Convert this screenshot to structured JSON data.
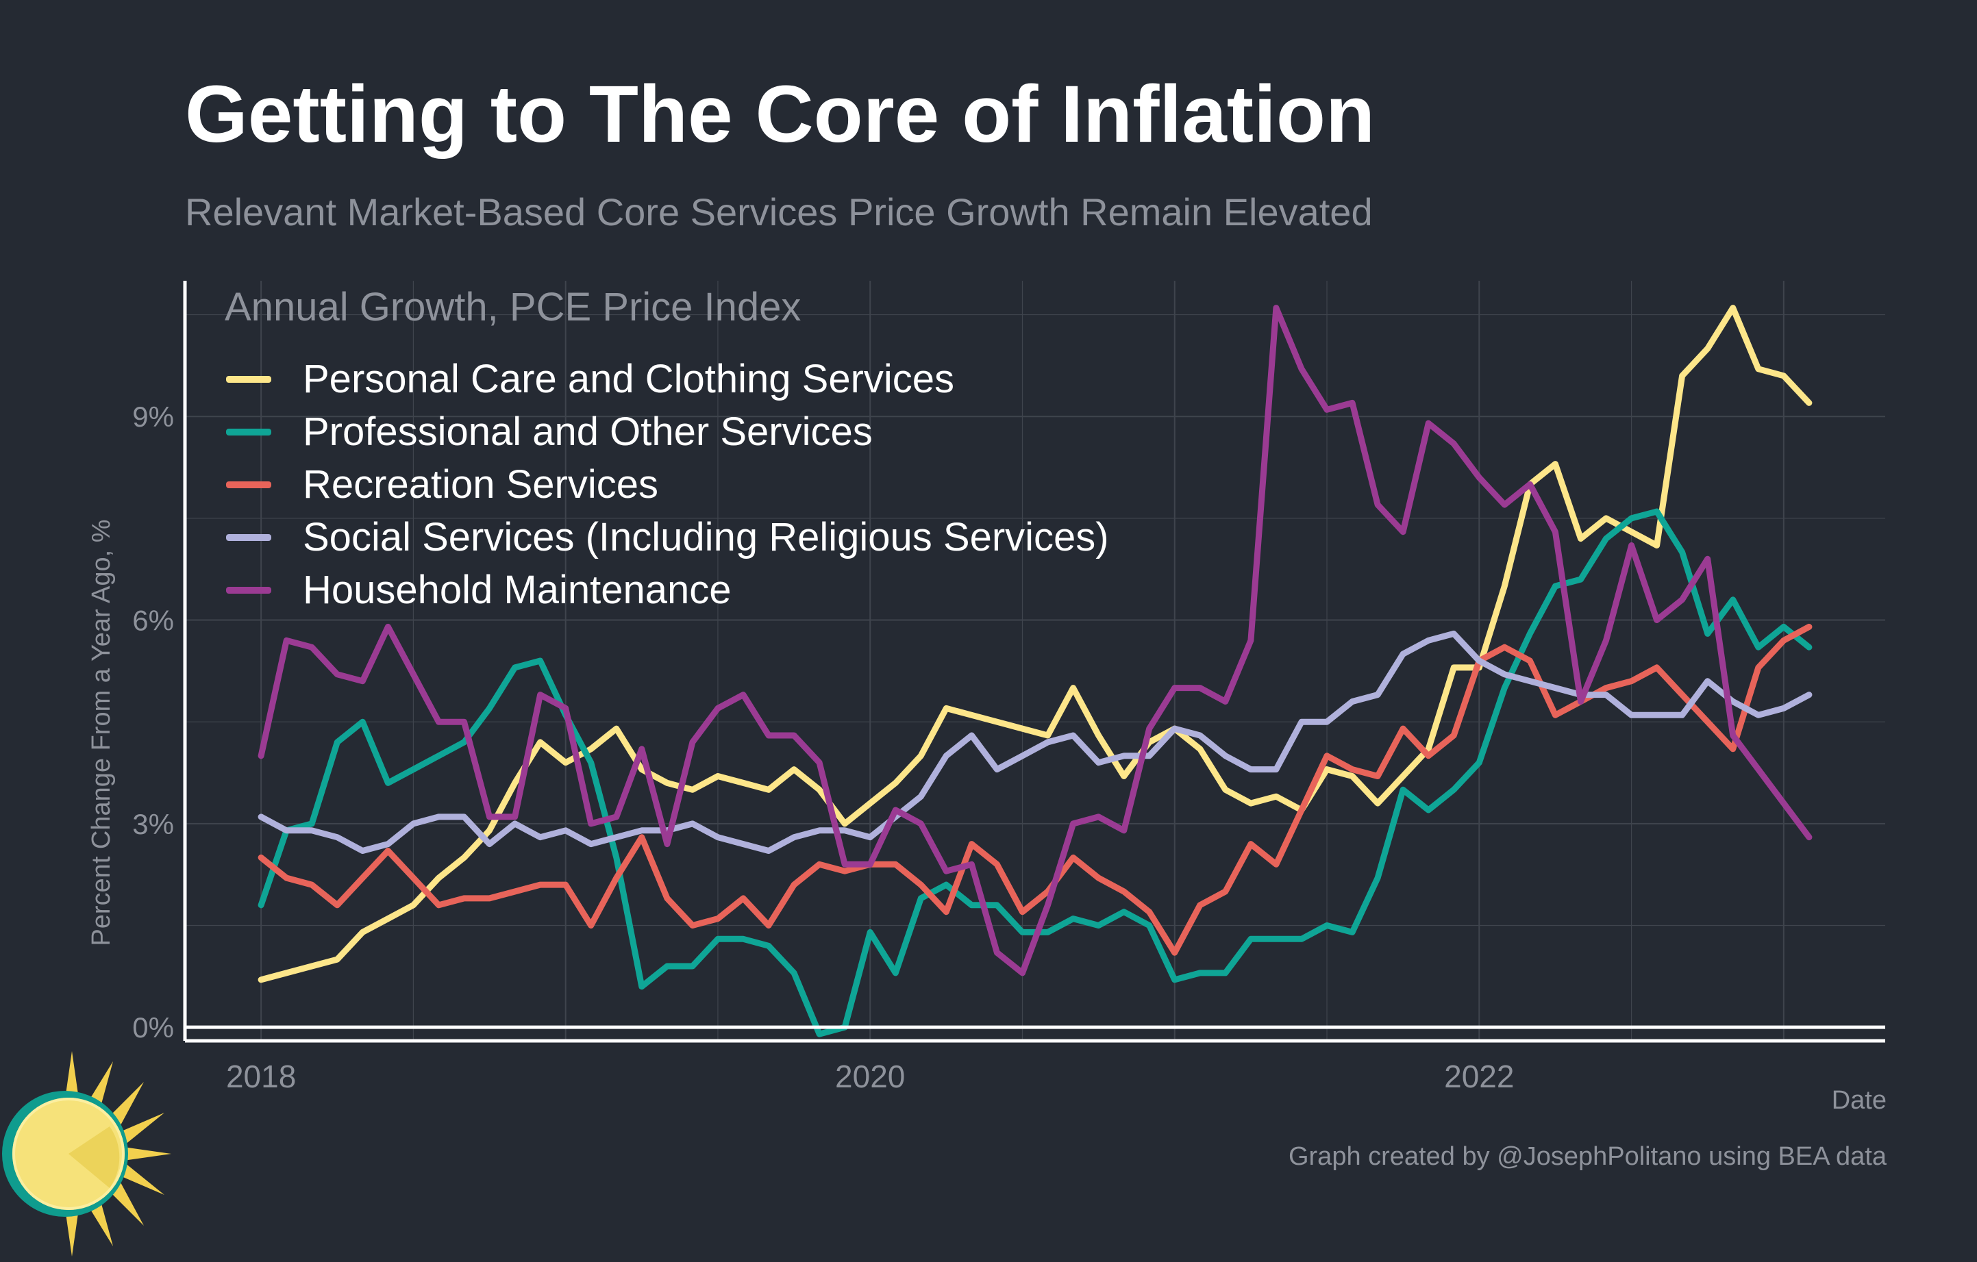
{
  "title": "Getting to The Core of Inflation",
  "subtitle": "Relevant Market-Based Core Services Price Growth Remain Elevated",
  "ylabel": "Percent Change From a Year Ago, %",
  "xaxis_title": "Date",
  "caption": "Graph created by @JosephPolitano using BEA data",
  "legend_title": "Annual Growth, PCE Price Index",
  "logo_icon": "sun-logo-icon",
  "colors": {
    "background": "#252a33",
    "grid": "#3f444d",
    "axis": "#ffffff",
    "muted_text": "#8e929b"
  },
  "chart_data": {
    "type": "line",
    "x_start": "2018-01",
    "x_frequency": "monthly",
    "xlim": [
      "2017-10",
      "2023-05"
    ],
    "ylim": [
      -0.2,
      11.0
    ],
    "y_ticks": [
      0,
      3,
      6,
      9
    ],
    "y_tick_labels": [
      "0%",
      "3%",
      "6%",
      "9%"
    ],
    "x_ticks": [
      "2018-01",
      "2020-01",
      "2022-01"
    ],
    "x_tick_labels": [
      "2018",
      "2020",
      "2022"
    ],
    "grid": true,
    "legend_position": "top-left",
    "series": [
      {
        "name": "Personal Care and Clothing Services",
        "color": "#fde68a",
        "values": [
          0.7,
          0.8,
          0.9,
          1.0,
          1.4,
          1.6,
          1.8,
          2.2,
          2.5,
          2.9,
          3.6,
          4.2,
          3.9,
          4.1,
          4.4,
          3.8,
          3.6,
          3.5,
          3.7,
          3.6,
          3.5,
          3.8,
          3.5,
          3.0,
          3.3,
          3.6,
          4.0,
          4.7,
          4.6,
          4.5,
          4.4,
          4.3,
          5.0,
          4.3,
          3.7,
          4.2,
          4.4,
          4.1,
          3.5,
          3.3,
          3.4,
          3.2,
          3.8,
          3.7,
          3.3,
          3.7,
          4.1,
          5.3,
          5.3,
          6.5,
          8.0,
          8.3,
          7.2,
          7.5,
          7.3,
          7.1,
          9.6,
          10.0,
          10.6,
          9.7,
          9.6,
          9.2
        ]
      },
      {
        "name": "Professional and Other Services",
        "color": "#0fa596",
        "values": [
          1.8,
          2.9,
          3.0,
          4.2,
          4.5,
          3.6,
          3.8,
          4.0,
          4.2,
          4.7,
          5.3,
          5.4,
          4.6,
          3.9,
          2.5,
          0.6,
          0.9,
          0.9,
          1.3,
          1.3,
          1.2,
          0.8,
          -0.1,
          0.0,
          1.4,
          0.8,
          1.9,
          2.1,
          1.8,
          1.8,
          1.4,
          1.4,
          1.6,
          1.5,
          1.7,
          1.5,
          0.7,
          0.8,
          0.8,
          1.3,
          1.3,
          1.3,
          1.5,
          1.4,
          2.2,
          3.5,
          3.2,
          3.5,
          3.9,
          5.0,
          5.8,
          6.5,
          6.6,
          7.2,
          7.5,
          7.6,
          7.0,
          5.8,
          6.3,
          5.6,
          5.9,
          5.6
        ]
      },
      {
        "name": "Recreation Services",
        "color": "#e8645a",
        "values": [
          2.5,
          2.2,
          2.1,
          1.8,
          2.2,
          2.6,
          2.2,
          1.8,
          1.9,
          1.9,
          2.0,
          2.1,
          2.1,
          1.5,
          2.2,
          2.8,
          1.9,
          1.5,
          1.6,
          1.9,
          1.5,
          2.1,
          2.4,
          2.3,
          2.4,
          2.4,
          2.1,
          1.7,
          2.7,
          2.4,
          1.7,
          2.0,
          2.5,
          2.2,
          2.0,
          1.7,
          1.1,
          1.8,
          2.0,
          2.7,
          2.4,
          3.2,
          4.0,
          3.8,
          3.7,
          4.4,
          4.0,
          4.3,
          5.4,
          5.6,
          5.4,
          4.6,
          4.8,
          5.0,
          5.1,
          5.3,
          4.9,
          4.5,
          4.1,
          5.3,
          5.7,
          5.9
        ]
      },
      {
        "name": "Social Services (Including Religious Services)",
        "color": "#b0b1dc",
        "values": [
          3.1,
          2.9,
          2.9,
          2.8,
          2.6,
          2.7,
          3.0,
          3.1,
          3.1,
          2.7,
          3.0,
          2.8,
          2.9,
          2.7,
          2.8,
          2.9,
          2.9,
          3.0,
          2.8,
          2.7,
          2.6,
          2.8,
          2.9,
          2.9,
          2.8,
          3.1,
          3.4,
          4.0,
          4.3,
          3.8,
          4.0,
          4.2,
          4.3,
          3.9,
          4.0,
          4.0,
          4.4,
          4.3,
          4.0,
          3.8,
          3.8,
          4.5,
          4.5,
          4.8,
          4.9,
          5.5,
          5.7,
          5.8,
          5.4,
          5.2,
          5.1,
          5.0,
          4.9,
          4.9,
          4.6,
          4.6,
          4.6,
          5.1,
          4.8,
          4.6,
          4.7,
          4.9
        ]
      },
      {
        "name": "Household Maintenance",
        "color": "#9b3b93",
        "values": [
          4.0,
          5.7,
          5.6,
          5.2,
          5.1,
          5.9,
          5.2,
          4.5,
          4.5,
          3.1,
          3.1,
          4.9,
          4.7,
          3.0,
          3.1,
          4.1,
          2.7,
          4.2,
          4.7,
          4.9,
          4.3,
          4.3,
          3.9,
          2.4,
          2.4,
          3.2,
          3.0,
          2.3,
          2.4,
          1.1,
          0.8,
          1.8,
          3.0,
          3.1,
          2.9,
          4.4,
          5.0,
          5.0,
          4.8,
          5.7,
          10.6,
          9.7,
          9.1,
          9.2,
          7.7,
          7.3,
          8.9,
          8.6,
          8.1,
          7.7,
          8.0,
          7.3,
          4.8,
          5.7,
          7.1,
          6.0,
          6.3,
          6.9,
          4.3,
          3.8,
          3.3,
          2.8
        ]
      }
    ]
  }
}
